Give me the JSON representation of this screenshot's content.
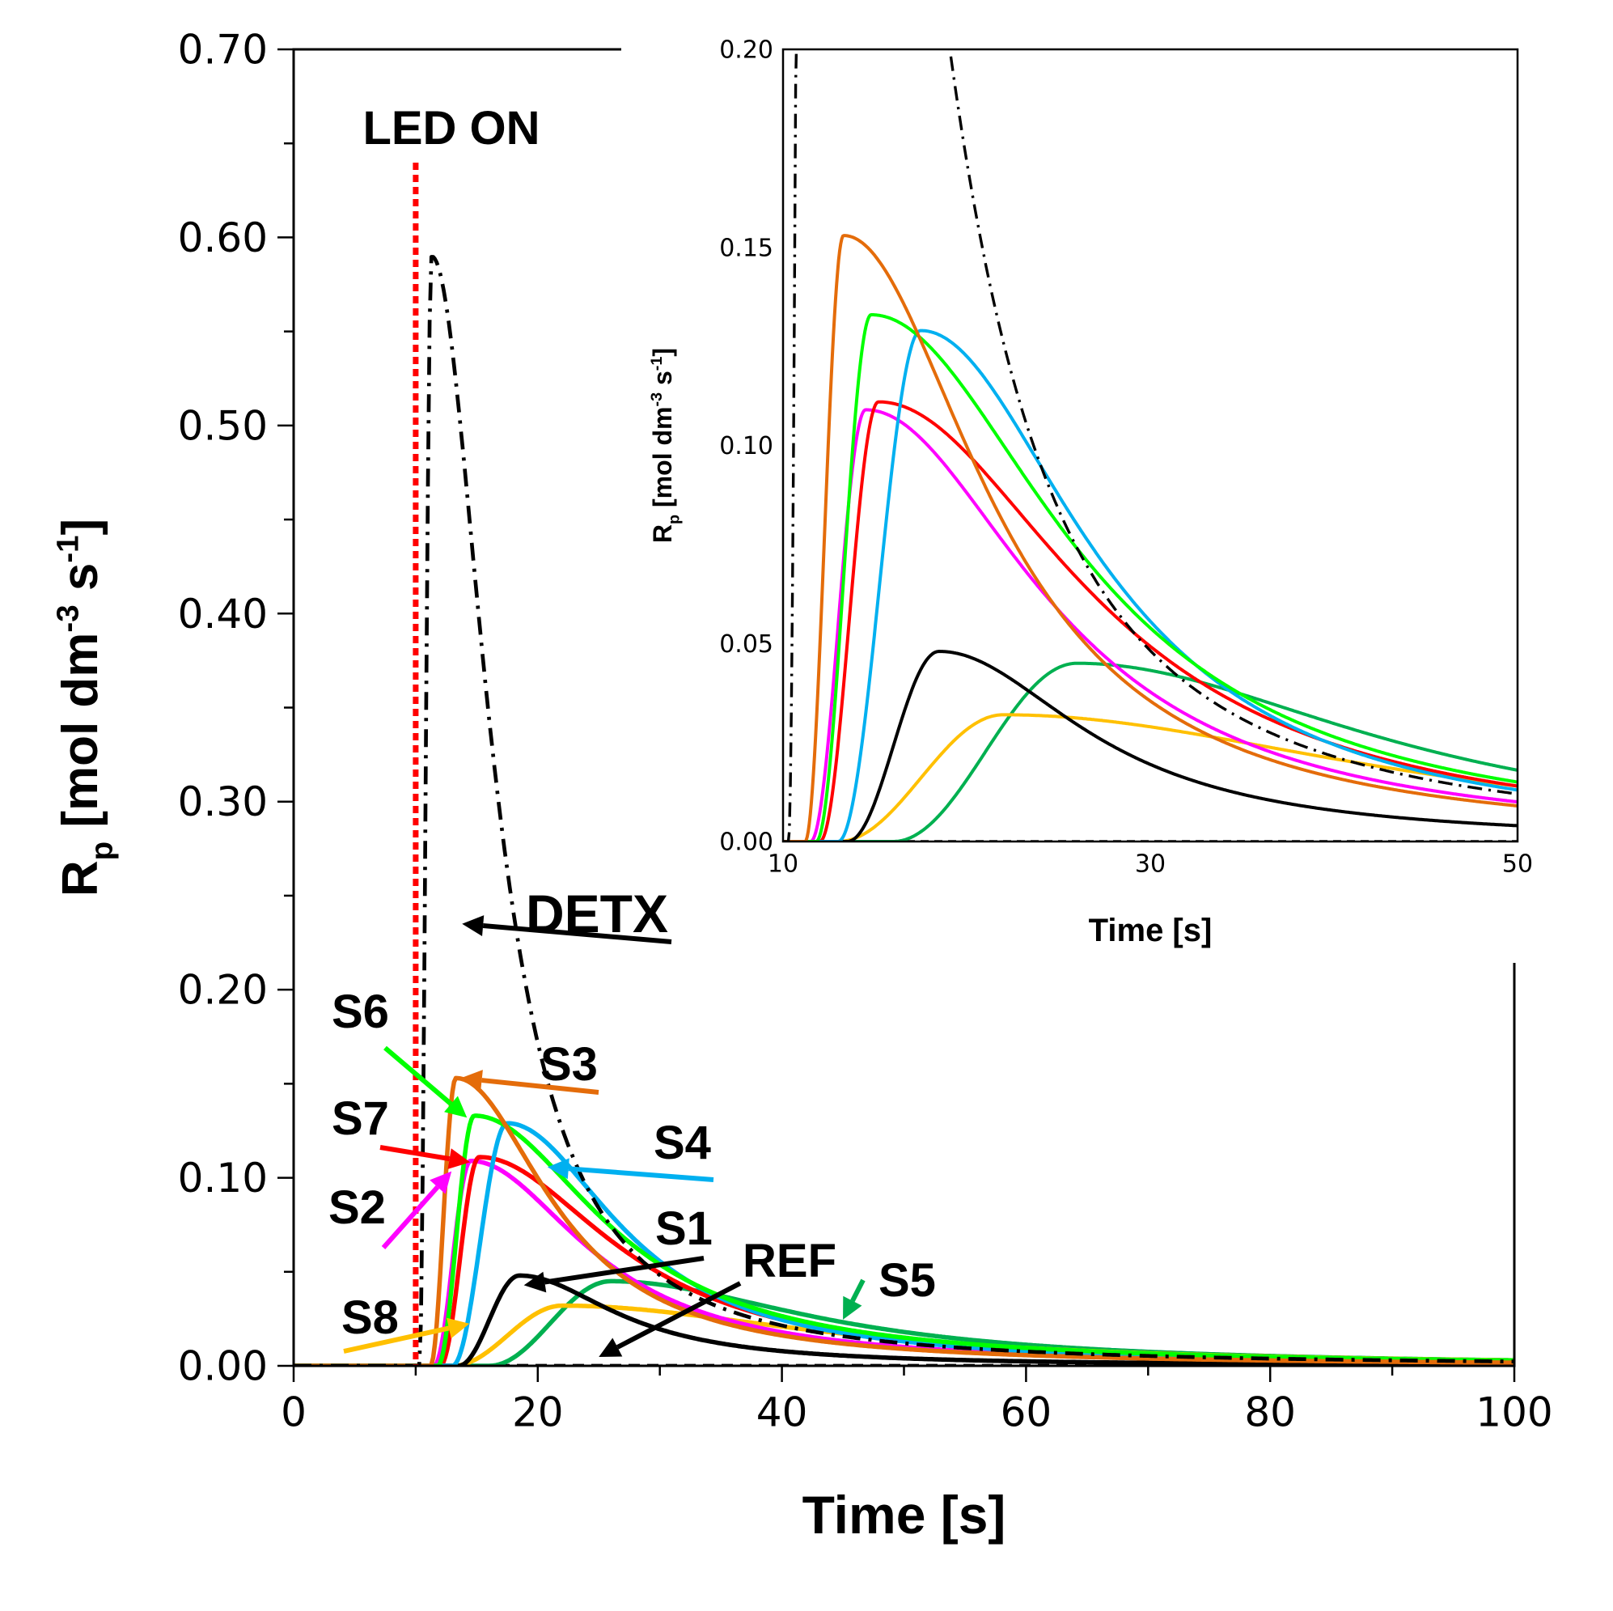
{
  "chart_data": [
    {
      "id": "main",
      "type": "line",
      "xlabel": "Time [s]",
      "ylabel_main": "R",
      "ylabel_sub": "p",
      "ylabel_units_a": " [mol dm",
      "ylabel_exp_a": "-3",
      "ylabel_units_b": " s",
      "ylabel_exp_b": "-1",
      "ylabel_close": "]",
      "xlim": [
        0,
        100
      ],
      "ylim": [
        0,
        0.7
      ],
      "x_ticks": [
        "0",
        "20",
        "40",
        "60",
        "80",
        "100"
      ],
      "y_ticks": [
        "0.00",
        "0.10",
        "0.20",
        "0.30",
        "0.40",
        "0.50",
        "0.60",
        "0.70"
      ],
      "led_on_time": 10,
      "led_label": "LED ON",
      "series": [
        {
          "name": "DETX",
          "color": "#000000",
          "style": "dashdot",
          "onset": 10.3,
          "peak_t": 11.3,
          "peak": 0.59,
          "tail_t": 50,
          "tail": 0.012
        },
        {
          "name": "S3",
          "color": "#E46C0A",
          "style": "solid",
          "onset": 11.2,
          "peak_t": 13.3,
          "peak": 0.153,
          "tail_t": 50,
          "tail": 0.009
        },
        {
          "name": "S6",
          "color": "#00FF00",
          "style": "solid",
          "onset": 11.8,
          "peak_t": 14.8,
          "peak": 0.133,
          "tail_t": 50,
          "tail": 0.015
        },
        {
          "name": "S4",
          "color": "#00B0F0",
          "style": "solid",
          "onset": 13.0,
          "peak_t": 17.5,
          "peak": 0.129,
          "tail_t": 50,
          "tail": 0.013
        },
        {
          "name": "S7",
          "color": "#FF0000",
          "style": "solid",
          "onset": 12.0,
          "peak_t": 15.2,
          "peak": 0.111,
          "tail_t": 50,
          "tail": 0.014
        },
        {
          "name": "S2",
          "color": "#FF00FF",
          "style": "solid",
          "onset": 11.5,
          "peak_t": 14.5,
          "peak": 0.109,
          "tail_t": 50,
          "tail": 0.01
        },
        {
          "name": "S1",
          "color": "#000000",
          "style": "solid",
          "onset": 13.5,
          "peak_t": 18.5,
          "peak": 0.048,
          "tail_t": 50,
          "tail": 0.004
        },
        {
          "name": "S5",
          "color": "#00B050",
          "style": "solid",
          "onset": 16.0,
          "peak_t": 26.0,
          "peak": 0.045,
          "tail_t": 50,
          "tail": 0.018
        },
        {
          "name": "S8",
          "color": "#FFC000",
          "style": "solid",
          "onset": 13.0,
          "peak_t": 22.0,
          "peak": 0.032,
          "tail_t": 50,
          "tail": 0.014
        },
        {
          "name": "REF",
          "color": "#000000",
          "style": "dashed",
          "onset": 0,
          "peak_t": 0,
          "peak": 0,
          "tail_t": 100,
          "tail": 0
        }
      ],
      "annotations": [
        {
          "label": "DETX",
          "target_t": 13.8,
          "target_rp": 0.235
        },
        {
          "label": "S3",
          "target_t": 13.3,
          "target_rp": 0.153
        },
        {
          "label": "S6",
          "target_t": 14.2,
          "target_rp": 0.132
        },
        {
          "label": "S4",
          "target_t": 20.8,
          "target_rp": 0.11
        },
        {
          "label": "S7",
          "target_t": 14.6,
          "target_rp": 0.11
        },
        {
          "label": "S2",
          "target_t": 13.2,
          "target_rp": 0.106
        },
        {
          "label": "S1",
          "target_t": 18.2,
          "target_rp": 0.048
        },
        {
          "label": "REF",
          "target_t": 25,
          "target_rp": 0.003
        },
        {
          "label": "S5",
          "target_t": 45,
          "target_rp": 0.022
        },
        {
          "label": "S8",
          "target_t": 14.8,
          "target_rp": 0.019
        }
      ]
    },
    {
      "id": "inset",
      "type": "line",
      "xlabel": "Time [s]",
      "ylabel_main": "R",
      "ylabel_sub": "p",
      "ylabel_units_a": " [mol dm",
      "ylabel_exp_a": "-3",
      "ylabel_units_b": " s",
      "ylabel_exp_b": "-1",
      "ylabel_close": "]",
      "xlim": [
        10,
        50
      ],
      "ylim": [
        0,
        0.2
      ],
      "x_ticks": [
        "10",
        "30",
        "50"
      ],
      "y_ticks": [
        "0.00",
        "0.05",
        "0.10",
        "0.15",
        "0.20"
      ],
      "series_ref": "same as main chart series"
    }
  ]
}
